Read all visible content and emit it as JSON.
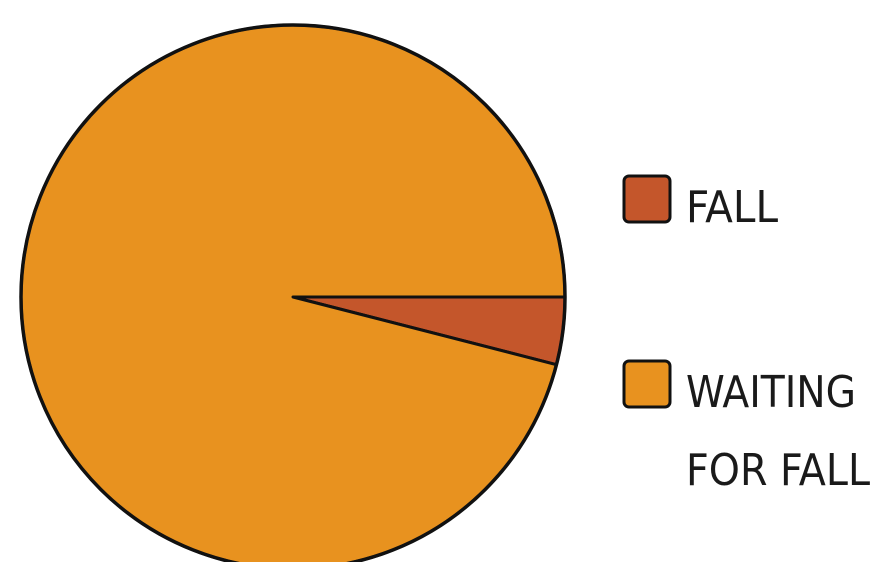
{
  "chart_data": {
    "type": "pie",
    "title": "",
    "slices": [
      {
        "label": "FALL",
        "value": 4,
        "color": "#c4562b"
      },
      {
        "label": "WAITING FOR FALL",
        "value": 96,
        "color": "#e8921f"
      }
    ],
    "legend": {
      "placement": "right",
      "items": [
        {
          "label_lines": [
            "FALL"
          ],
          "color": "#c4562b"
        },
        {
          "label_lines": [
            "WAITING",
            "FOR FALL"
          ],
          "color": "#e8921f"
        }
      ]
    },
    "outline_color": "#111111",
    "data_labels": false
  }
}
